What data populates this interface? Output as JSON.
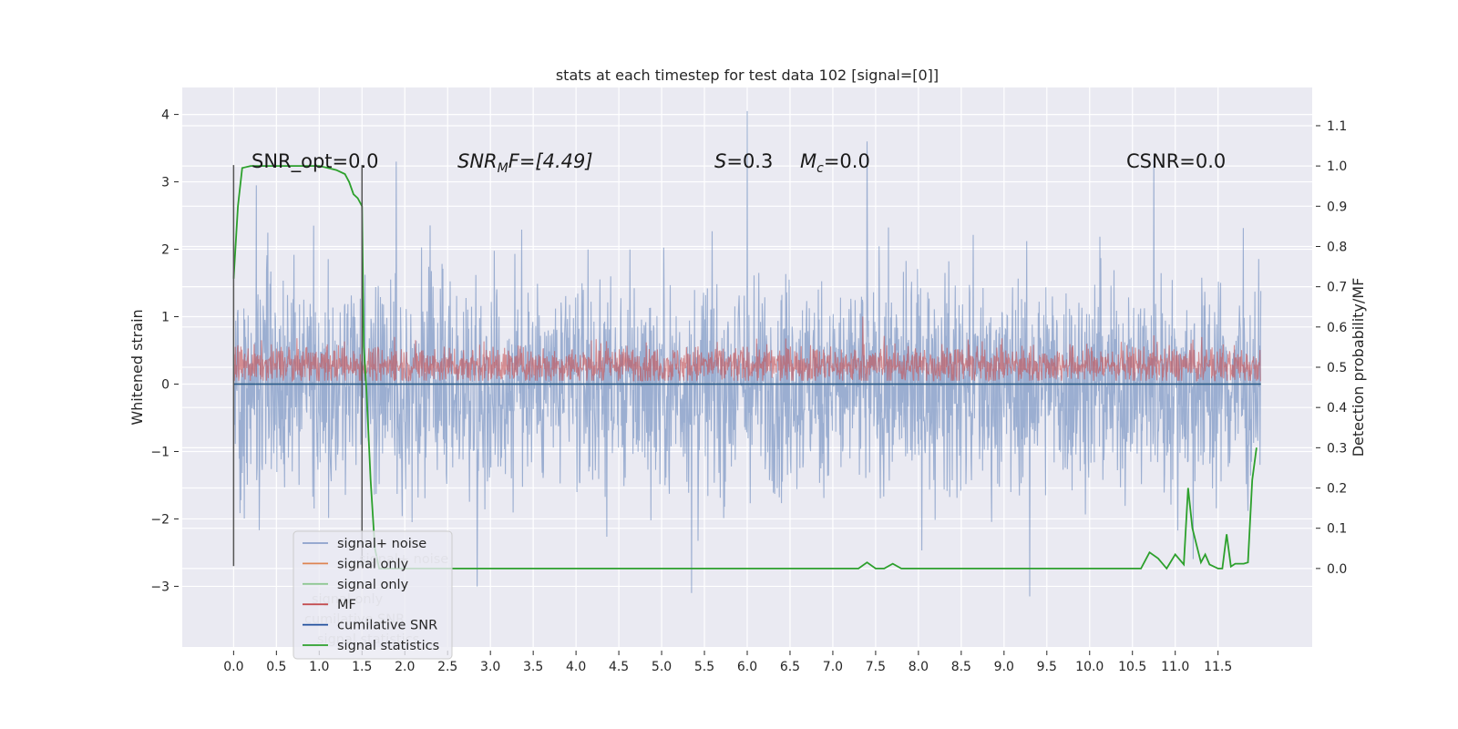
{
  "chart_data": {
    "type": "line",
    "title": "stats at each timestep for test data 102 [signal=[0]]",
    "xlabel": "",
    "ylabel": "Whitened strain",
    "y2label": "Detection probability/MF",
    "xlim": [
      -0.6,
      12.6
    ],
    "ylim": [
      -3.9,
      4.4
    ],
    "y2lim": [
      -0.195,
      1.195
    ],
    "x_ticks": [
      "0.0",
      "0.5",
      "1.0",
      "1.5",
      "2.0",
      "2.5",
      "3.0",
      "3.5",
      "4.0",
      "4.5",
      "5.0",
      "5.5",
      "6.0",
      "6.5",
      "7.0",
      "7.5",
      "8.0",
      "8.5",
      "9.0",
      "9.5",
      "10.0",
      "10.5",
      "11.0",
      "11.5"
    ],
    "y_ticks": [
      "4",
      "3",
      "2",
      "1",
      "0",
      "−1",
      "−2",
      "−3"
    ],
    "y2_ticks": [
      "1.1",
      "1.0",
      "0.9",
      "0.8",
      "0.7",
      "0.6",
      "0.5",
      "0.4",
      "0.3",
      "0.2",
      "0.1",
      "0.0"
    ],
    "grid": true,
    "background": "#eaeaf2",
    "annotations": {
      "snr_opt": "SNR_opt=0.0",
      "snr_mf_main": "SNR",
      "snr_mf_sub": "M",
      "snr_mf_rest": "F=[4.49]",
      "s_main": "S",
      "s_rest": "=0.3",
      "mc_main": "M",
      "mc_sub": "c",
      "mc_rest": "=0.0",
      "csnr": "CSNR=0.0"
    },
    "vertical_markers": [
      0.0,
      1.5
    ],
    "series": [
      {
        "name": "signal+ noise",
        "color": "#4c72b0",
        "axis": "left",
        "x_range": [
          0.0,
          12.0
        ],
        "envelope_max": 4.05,
        "envelope_min": -3.15,
        "typical_upper": 1.5,
        "typical_lower": -1.5
      },
      {
        "name": "signal only",
        "color": "#dd8452",
        "axis": "left",
        "constant": 0.0
      },
      {
        "name": "signal only",
        "color": "#55a868",
        "axis": "left",
        "constant": 0.0
      },
      {
        "name": "MF",
        "color": "#c44e52",
        "axis": "left",
        "x_range": [
          0.0,
          12.0
        ],
        "typical_upper": 0.6,
        "typical_lower": 0.05,
        "peak": 1.0
      },
      {
        "name": "cumilative SNR",
        "color": "#1f4e9c",
        "axis": "left",
        "constant": 0.0
      },
      {
        "name": "signal statistics",
        "color": "#2ca02c",
        "axis": "right",
        "x": [
          0.0,
          0.05,
          0.1,
          0.2,
          0.3,
          0.5,
          0.7,
          0.9,
          1.0,
          1.1,
          1.2,
          1.3,
          1.35,
          1.4,
          1.45,
          1.5,
          1.52,
          1.55,
          1.6,
          1.65,
          1.7,
          1.8,
          2.0,
          3.0,
          4.0,
          5.0,
          6.0,
          7.0,
          7.3,
          7.4,
          7.5,
          7.6,
          7.7,
          7.8,
          8.0,
          9.0,
          10.0,
          10.6,
          10.7,
          10.8,
          10.9,
          11.0,
          11.1,
          11.15,
          11.2,
          11.3,
          11.35,
          11.4,
          11.5,
          11.55,
          11.6,
          11.65,
          11.7,
          11.8,
          11.85,
          11.9,
          11.95
        ],
        "y": [
          0.72,
          0.9,
          0.995,
          1.0,
          1.0,
          1.0,
          1.0,
          1.0,
          1.0,
          0.995,
          0.99,
          0.98,
          0.96,
          0.93,
          0.92,
          0.9,
          0.55,
          0.45,
          0.22,
          0.05,
          0.0,
          0.0,
          0.0,
          0.0,
          0.0,
          0.0,
          0.0,
          0.0,
          0.0,
          0.015,
          0.0,
          0.0,
          0.012,
          0.0,
          0.0,
          0.0,
          0.0,
          0.0,
          0.04,
          0.025,
          0.0,
          0.035,
          0.01,
          0.2,
          0.1,
          0.015,
          0.035,
          0.01,
          0.0,
          0.0,
          0.085,
          0.005,
          0.012,
          0.012,
          0.015,
          0.22,
          0.3
        ]
      }
    ],
    "legend": {
      "position": "lower-left",
      "entries": [
        {
          "label": "signal+ noise",
          "color": "#8da0cb"
        },
        {
          "label": "signal only",
          "color": "#dd8452"
        },
        {
          "label": "signal only",
          "color": "#8fc793"
        },
        {
          "label": "MF",
          "color": "#c44e52"
        },
        {
          "label": "cumilative SNR",
          "color": "#1f4e9c"
        },
        {
          "label": "signal statistics",
          "color": "#2ca02c"
        }
      ],
      "ghost_entries": [
        "signal+ noise",
        "signal only",
        "cumilative SNR",
        "signal statistics"
      ]
    }
  }
}
